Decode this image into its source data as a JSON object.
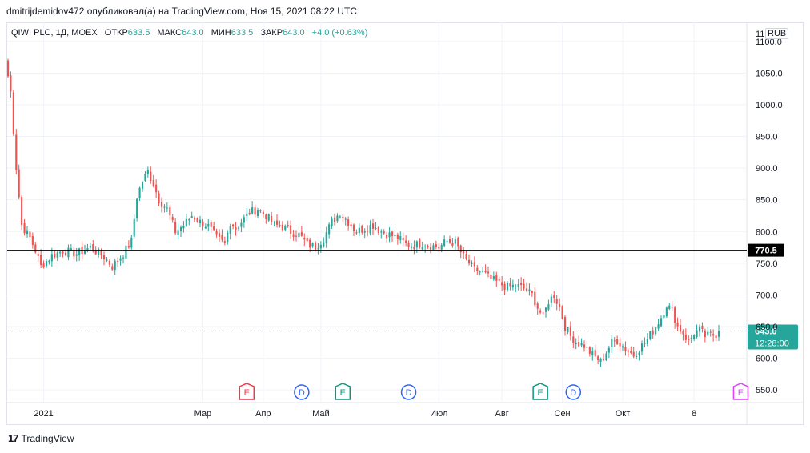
{
  "header": {
    "publish_line": "dmitrijdemidov472 опубликовал(а) на TradingView.com, Ноя 15, 2021 08:22 UTC"
  },
  "legend": {
    "symbol": "QIWI PLC, 1Д, MOEX",
    "open_label": "ОТКР",
    "open_value": "633.5",
    "high_label": "МАКС",
    "high_value": "643.0",
    "low_label": "МИН",
    "low_value": "633.5",
    "close_label": "ЗАКР",
    "close_value": "643.0",
    "change": "+4.0 (+0.63%)"
  },
  "currency": "RUB",
  "price_axis_label_cut": "11",
  "footer": {
    "logo_mark": "17",
    "brand": "TradingView"
  },
  "colors": {
    "up": "#26a69a",
    "down": "#ef5350",
    "grid": "#f0f3fa",
    "hline": "#000000",
    "price_badge": "#26a69a",
    "earnings_red": "#f23645",
    "earnings_green": "#089981",
    "dividend": "#2962ff",
    "earnings_future": "#e040fb"
  },
  "chart_data": {
    "type": "candlestick",
    "y_ticks": [
      "1100.0",
      "1050.0",
      "1000.0",
      "950.0",
      "900.0",
      "850.0",
      "800.0",
      "750.0",
      "700.0",
      "650.0",
      "600.0",
      "550.0"
    ],
    "ylim": [
      530,
      1130
    ],
    "x_ticks": [
      {
        "label": "2021",
        "index": 13
      },
      {
        "label": "Мар",
        "index": 71
      },
      {
        "label": "Апр",
        "index": 93
      },
      {
        "label": "Май",
        "index": 114
      },
      {
        "label": "Июл",
        "index": 157
      },
      {
        "label": "Авг",
        "index": 180
      },
      {
        "label": "Сен",
        "index": 202
      },
      {
        "label": "Окт",
        "index": 224
      },
      {
        "label": "8",
        "index": 250
      }
    ],
    "horizontal_line": {
      "value": 770.5,
      "label": "770.5"
    },
    "last_price": {
      "value": 643.0,
      "label": "643.0",
      "time": "12:28:00"
    },
    "events": [
      {
        "letter": "E",
        "kind": "earnings",
        "color": "#f23645",
        "index": 87
      },
      {
        "letter": "D",
        "kind": "dividend",
        "color": "#2962ff",
        "index": 107
      },
      {
        "letter": "E",
        "kind": "earnings",
        "color": "#089981",
        "index": 122
      },
      {
        "letter": "D",
        "kind": "dividend",
        "color": "#2962ff",
        "index": 146
      },
      {
        "letter": "E",
        "kind": "earnings",
        "color": "#089981",
        "index": 194
      },
      {
        "letter": "D",
        "kind": "dividend",
        "color": "#2962ff",
        "index": 206
      },
      {
        "letter": "E",
        "kind": "earnings",
        "color": "#e040fb",
        "index": 267
      }
    ],
    "candle_count": 260,
    "anchor_closes": [
      [
        0,
        1045
      ],
      [
        1,
        1020
      ],
      [
        3,
        900
      ],
      [
        5,
        810
      ],
      [
        8,
        790
      ],
      [
        10,
        770
      ],
      [
        12,
        745
      ],
      [
        16,
        762
      ],
      [
        20,
        770
      ],
      [
        25,
        765
      ],
      [
        30,
        775
      ],
      [
        35,
        760
      ],
      [
        38,
        745
      ],
      [
        42,
        765
      ],
      [
        45,
        785
      ],
      [
        47,
        855
      ],
      [
        49,
        880
      ],
      [
        51,
        895
      ],
      [
        53,
        875
      ],
      [
        55,
        850
      ],
      [
        58,
        835
      ],
      [
        61,
        800
      ],
      [
        64,
        810
      ],
      [
        67,
        825
      ],
      [
        70,
        815
      ],
      [
        73,
        808
      ],
      [
        76,
        790
      ],
      [
        79,
        780
      ],
      [
        81,
        815
      ],
      [
        83,
        805
      ],
      [
        85,
        815
      ],
      [
        88,
        830
      ],
      [
        91,
        835
      ],
      [
        94,
        825
      ],
      [
        97,
        810
      ],
      [
        100,
        808
      ],
      [
        103,
        800
      ],
      [
        106,
        795
      ],
      [
        109,
        780
      ],
      [
        112,
        775
      ],
      [
        115,
        790
      ],
      [
        118,
        815
      ],
      [
        121,
        830
      ],
      [
        124,
        815
      ],
      [
        127,
        800
      ],
      [
        130,
        805
      ],
      [
        133,
        810
      ],
      [
        136,
        800
      ],
      [
        139,
        795
      ],
      [
        142,
        790
      ],
      [
        145,
        780
      ],
      [
        148,
        778
      ],
      [
        151,
        782
      ],
      [
        154,
        778
      ],
      [
        157,
        775
      ],
      [
        160,
        785
      ],
      [
        163,
        782
      ],
      [
        166,
        760
      ],
      [
        168,
        750
      ],
      [
        170,
        740
      ],
      [
        173,
        735
      ],
      [
        176,
        725
      ],
      [
        179,
        718
      ],
      [
        182,
        712
      ],
      [
        185,
        715
      ],
      [
        188,
        710
      ],
      [
        191,
        700
      ],
      [
        193,
        680
      ],
      [
        195,
        665
      ],
      [
        197,
        690
      ],
      [
        199,
        700
      ],
      [
        201,
        680
      ],
      [
        203,
        650
      ],
      [
        205,
        635
      ],
      [
        207,
        625
      ],
      [
        210,
        620
      ],
      [
        213,
        605
      ],
      [
        216,
        595
      ],
      [
        218,
        610
      ],
      [
        220,
        625
      ],
      [
        222,
        628
      ],
      [
        225,
        615
      ],
      [
        228,
        605
      ],
      [
        231,
        620
      ],
      [
        233,
        630
      ],
      [
        236,
        650
      ],
      [
        238,
        665
      ],
      [
        240,
        685
      ],
      [
        242,
        675
      ],
      [
        244,
        650
      ],
      [
        246,
        640
      ],
      [
        248,
        625
      ],
      [
        250,
        640
      ],
      [
        252,
        645
      ],
      [
        254,
        635
      ],
      [
        256,
        636
      ],
      [
        258,
        638
      ],
      [
        259,
        643
      ]
    ]
  }
}
